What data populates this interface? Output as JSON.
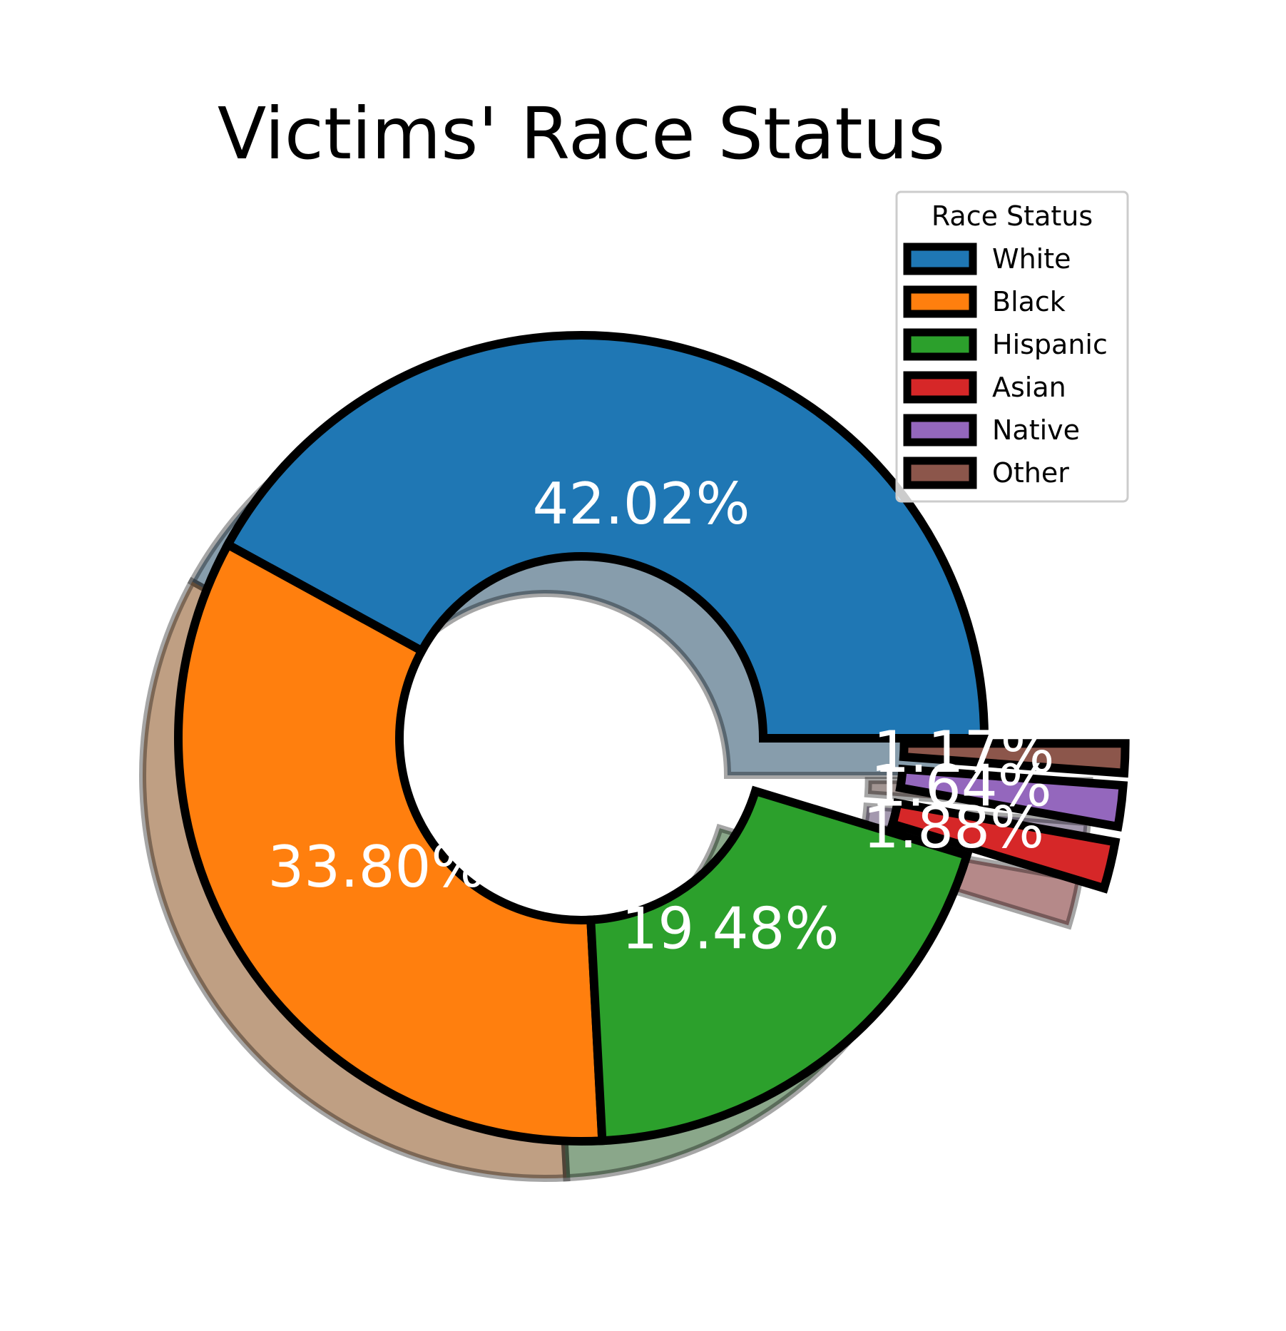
{
  "chart_data": {
    "type": "pie",
    "style": "donut",
    "title": "Victims' Race Status",
    "legend_title": "Race Status",
    "legend_position": "top-right",
    "shadow": true,
    "start_angle_deg": 0,
    "direction": "counterclockwise",
    "categories": [
      "White",
      "Black",
      "Hispanic",
      "Asian",
      "Native",
      "Other"
    ],
    "values": [
      42.02,
      33.8,
      19.48,
      1.88,
      1.64,
      1.17
    ],
    "labels": [
      "42.02%",
      "33.80%",
      "19.48%",
      "1.88%",
      "1.64%",
      "1.17%"
    ],
    "explode": [
      0,
      0,
      0,
      0.35,
      0.35,
      0.35
    ],
    "colors": [
      "#1f77b4",
      "#ff7f0e",
      "#2ca02c",
      "#d62728",
      "#9467bd",
      "#8c564b"
    ],
    "edge_color": "#000000"
  }
}
